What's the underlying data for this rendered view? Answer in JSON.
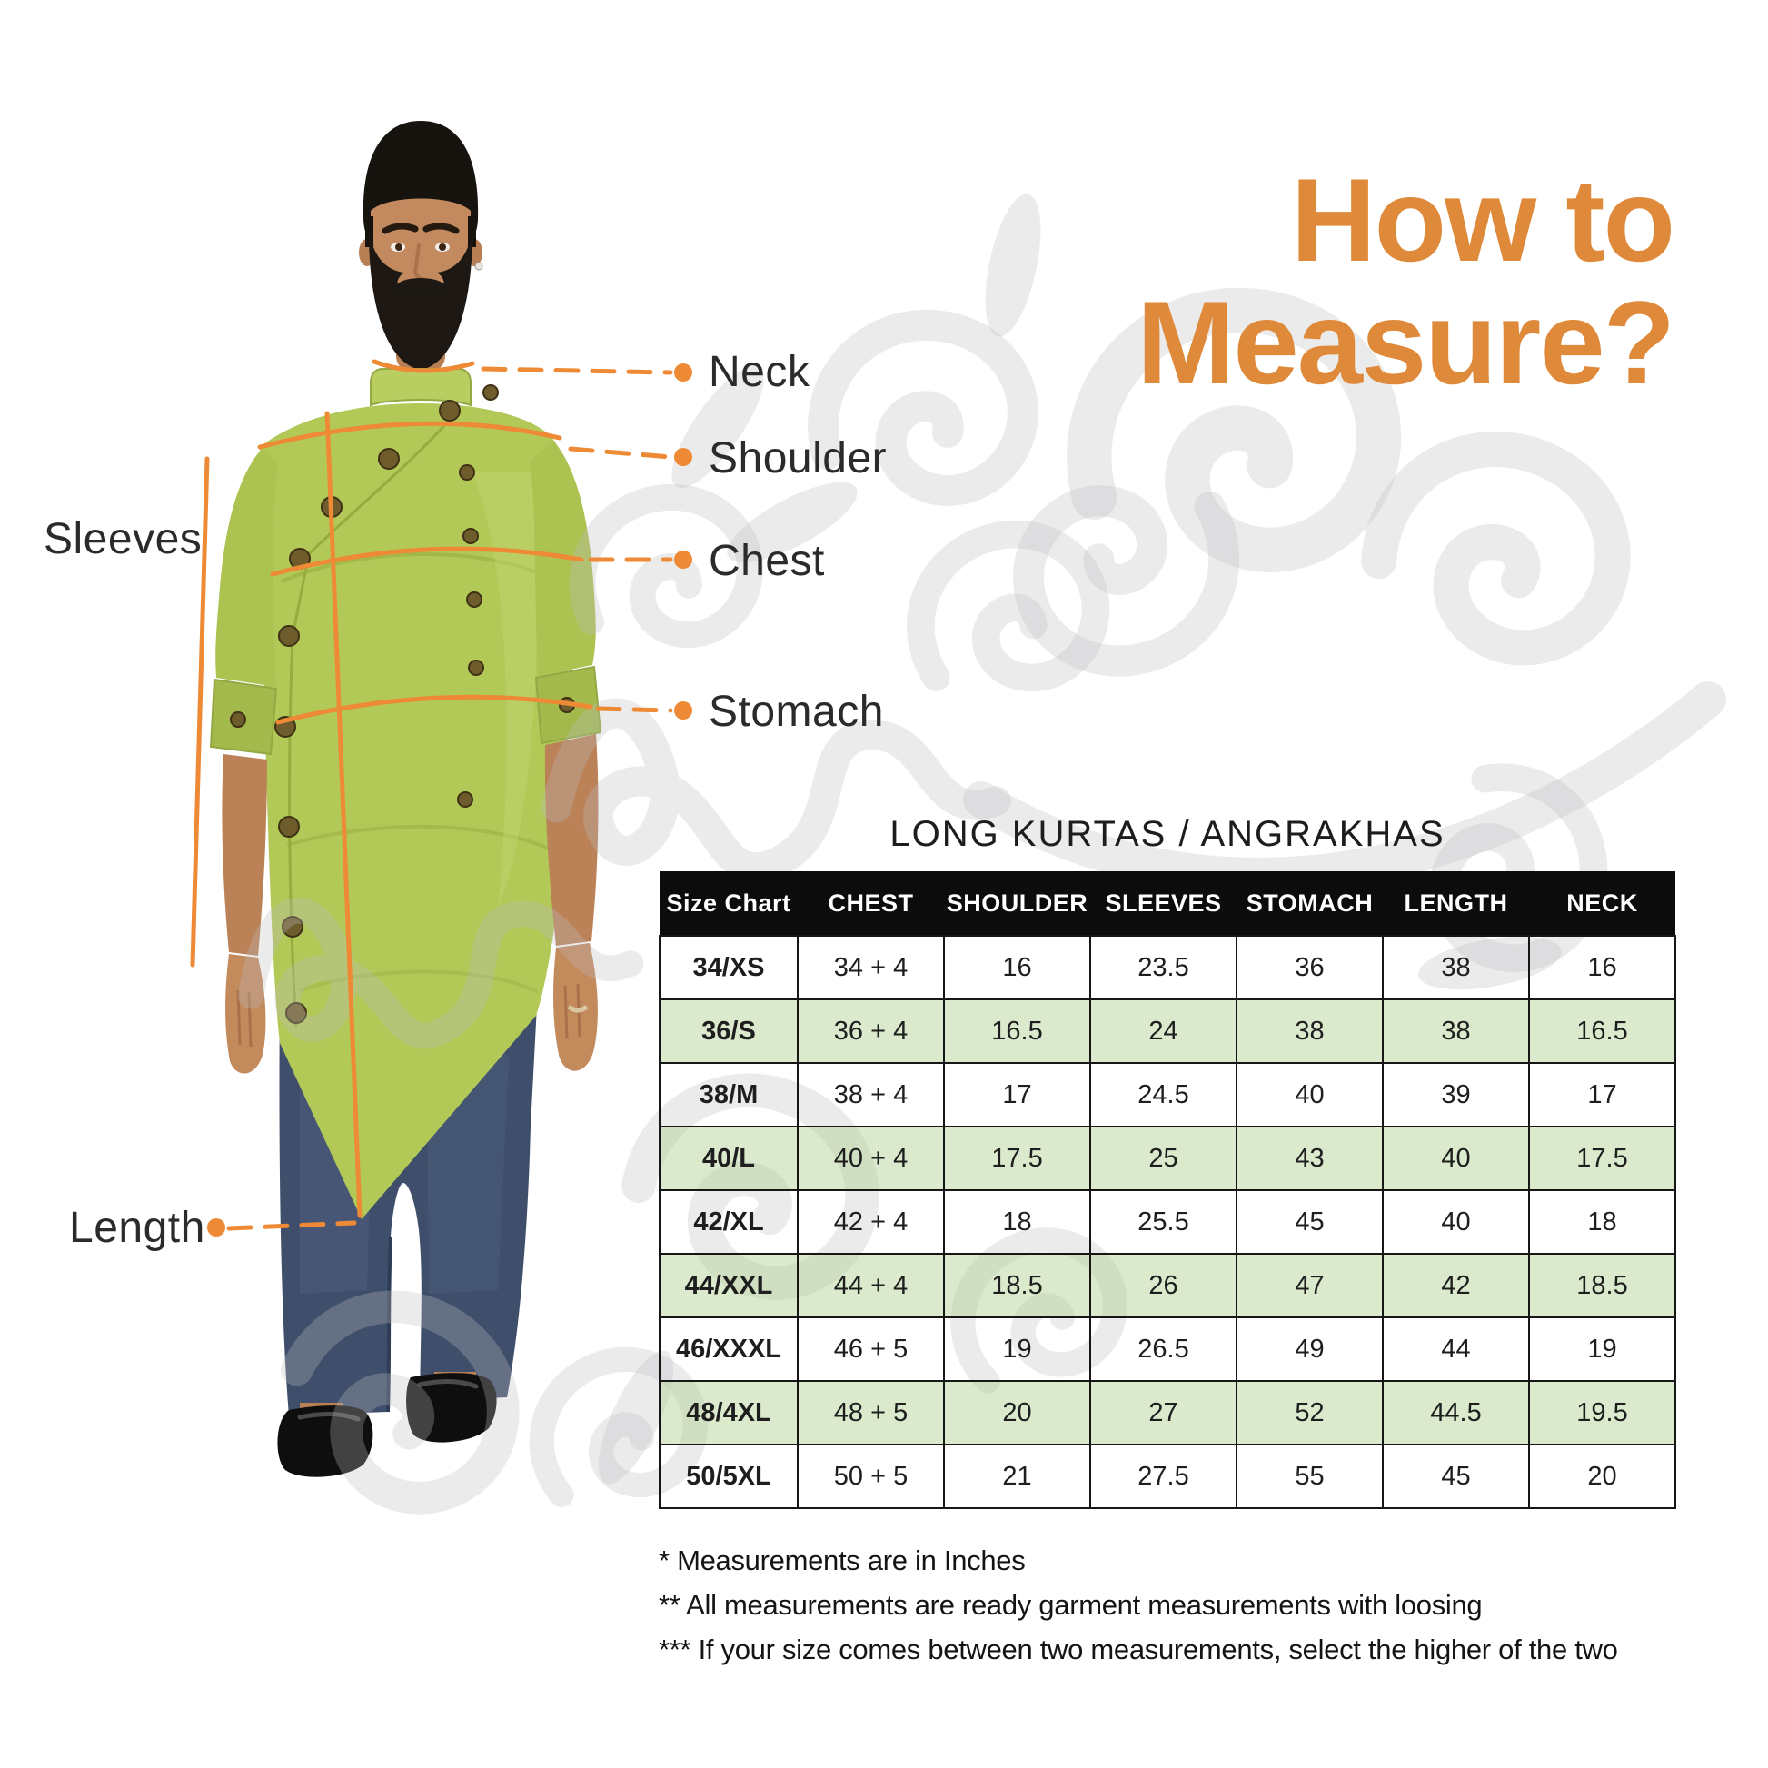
{
  "header": {
    "line1": "How to",
    "line2": "Measure?"
  },
  "figure": {
    "labels": {
      "neck": "Neck",
      "shoulder": "Shoulder",
      "chest": "Chest",
      "stomach": "Stomach",
      "sleeves": "Sleeves",
      "length": "Length"
    }
  },
  "size_chart": {
    "title": "LONG KURTAS / ANGRAKHAS",
    "columns": [
      "Size Chart",
      "CHEST",
      "SHOULDER",
      "SLEEVES",
      "STOMACH",
      "LENGTH",
      "NECK"
    ],
    "rows": [
      [
        "34/XS",
        "34 + 4",
        "16",
        "23.5",
        "36",
        "38",
        "16"
      ],
      [
        "36/S",
        "36 + 4",
        "16.5",
        "24",
        "38",
        "38",
        "16.5"
      ],
      [
        "38/M",
        "38 + 4",
        "17",
        "24.5",
        "40",
        "39",
        "17"
      ],
      [
        "40/L",
        "40 + 4",
        "17.5",
        "25",
        "43",
        "40",
        "17.5"
      ],
      [
        "42/XL",
        "42 + 4",
        "18",
        "25.5",
        "45",
        "40",
        "18"
      ],
      [
        "44/XXL",
        "44 + 4",
        "18.5",
        "26",
        "47",
        "42",
        "18.5"
      ],
      [
        "46/XXXL",
        "46 + 5",
        "19",
        "26.5",
        "49",
        "44",
        "19"
      ],
      [
        "48/4XL",
        "48 + 5",
        "20",
        "27",
        "52",
        "44.5",
        "19.5"
      ],
      [
        "50/5XL",
        "50 + 5",
        "21",
        "27.5",
        "55",
        "45",
        "20"
      ]
    ]
  },
  "notes": [
    "* Measurements are in Inches",
    "** All measurements are ready garment measurements with loosing",
    "*** If your size comes between two measurements, select the higher of the two"
  ],
  "colors": {
    "accent_orange": "#df8a3b",
    "measure_line_orange": "#ee8a35",
    "table_header_bg": "#0c0c0c",
    "table_row_green": "#d9e7cc",
    "kurta_green": "#b2c857",
    "jeans_blue": "#3f4f6b",
    "watermark_gray": "#ededed"
  }
}
